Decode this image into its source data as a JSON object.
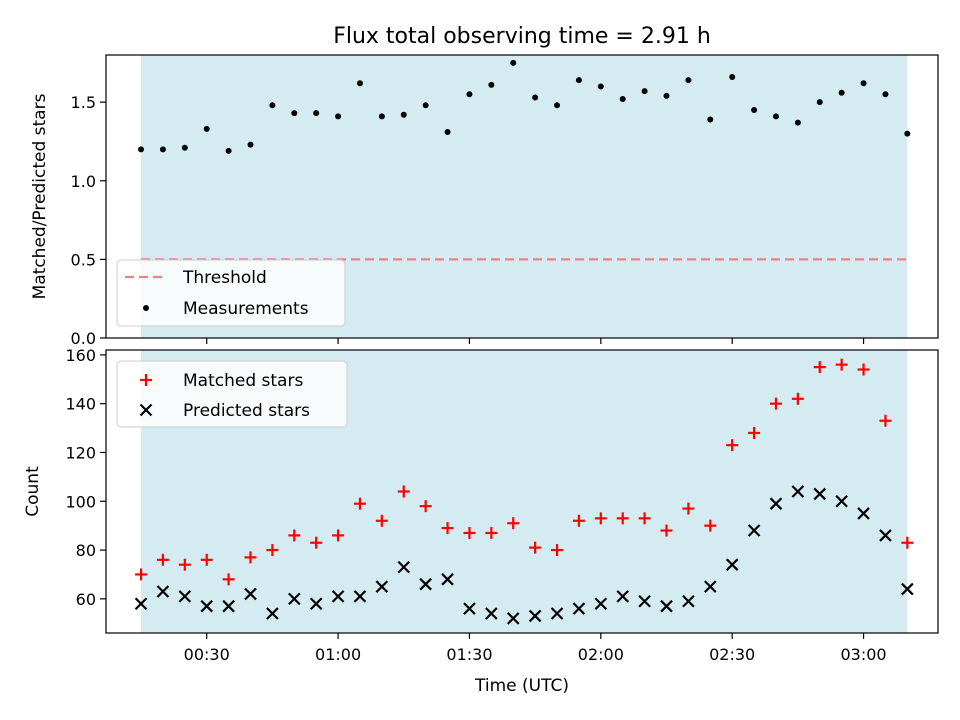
{
  "chart_data": [
    {
      "type": "scatter",
      "title": "Flux total observing time = 2.91 h",
      "ylabel": "Matched/Predicted stars",
      "xlabel": "",
      "ylim": [
        0,
        1.8
      ],
      "yticks": [
        0.0,
        0.5,
        1.0,
        1.5
      ],
      "ytick_labels": [
        "0.0",
        "0.5",
        "1.0",
        "1.5"
      ],
      "grid": false,
      "legend_position": "lower-left",
      "shaded_region": {
        "color": "#d4ebf1",
        "x_start": "00:15",
        "x_end": "03:10"
      },
      "threshold": {
        "name": "Threshold",
        "value": 0.5,
        "color": "#f08080",
        "style": "dashed"
      },
      "series": [
        {
          "name": "Measurements",
          "color": "#000000",
          "marker": "dot",
          "x": [
            "00:15",
            "00:20",
            "00:25",
            "00:30",
            "00:35",
            "00:40",
            "00:45",
            "00:50",
            "00:55",
            "01:00",
            "01:05",
            "01:10",
            "01:15",
            "01:20",
            "01:25",
            "01:30",
            "01:35",
            "01:40",
            "01:45",
            "01:50",
            "01:55",
            "02:00",
            "02:05",
            "02:10",
            "02:15",
            "02:20",
            "02:25",
            "02:30",
            "02:35",
            "02:40",
            "02:45",
            "02:50",
            "02:55",
            "03:00",
            "03:05",
            "03:10"
          ],
          "values": [
            1.2,
            1.2,
            1.21,
            1.33,
            1.19,
            1.23,
            1.48,
            1.43,
            1.43,
            1.41,
            1.62,
            1.41,
            1.42,
            1.48,
            1.31,
            1.55,
            1.61,
            1.75,
            1.53,
            1.48,
            1.64,
            1.6,
            1.52,
            1.57,
            1.54,
            1.64,
            1.39,
            1.66,
            1.45,
            1.41,
            1.37,
            1.5,
            1.56,
            1.62,
            1.55,
            1.3
          ]
        }
      ]
    },
    {
      "type": "scatter",
      "title": "",
      "xlabel": "Time (UTC)",
      "ylabel": "Count",
      "ylim": [
        46,
        162
      ],
      "yticks": [
        60,
        80,
        100,
        120,
        140,
        160
      ],
      "ytick_labels": [
        "60",
        "80",
        "100",
        "120",
        "140",
        "160"
      ],
      "xlim": [
        "00:07",
        "03:17"
      ],
      "xticks": [
        "00:30",
        "01:00",
        "01:30",
        "02:00",
        "02:30",
        "03:00"
      ],
      "grid": false,
      "legend_position": "top-left",
      "series": [
        {
          "name": "Matched stars",
          "color": "#ff0000",
          "marker": "plus",
          "x": [
            "00:15",
            "00:20",
            "00:25",
            "00:30",
            "00:35",
            "00:40",
            "00:45",
            "00:50",
            "00:55",
            "01:00",
            "01:05",
            "01:10",
            "01:15",
            "01:20",
            "01:25",
            "01:30",
            "01:35",
            "01:40",
            "01:45",
            "01:50",
            "01:55",
            "02:00",
            "02:05",
            "02:10",
            "02:15",
            "02:20",
            "02:25",
            "02:30",
            "02:35",
            "02:40",
            "02:45",
            "02:50",
            "02:55",
            "03:00",
            "03:05",
            "03:10"
          ],
          "values": [
            70,
            76,
            74,
            76,
            68,
            77,
            80,
            86,
            83,
            86,
            99,
            92,
            104,
            98,
            89,
            87,
            87,
            91,
            81,
            80,
            92,
            93,
            93,
            93,
            88,
            97,
            90,
            123,
            128,
            140,
            142,
            155,
            156,
            154,
            133,
            83
          ]
        },
        {
          "name": "Predicted stars",
          "color": "#000000",
          "marker": "x",
          "x": [
            "00:15",
            "00:20",
            "00:25",
            "00:30",
            "00:35",
            "00:40",
            "00:45",
            "00:50",
            "00:55",
            "01:00",
            "01:05",
            "01:10",
            "01:15",
            "01:20",
            "01:25",
            "01:30",
            "01:35",
            "01:40",
            "01:45",
            "01:50",
            "01:55",
            "02:00",
            "02:05",
            "02:10",
            "02:15",
            "02:20",
            "02:25",
            "02:30",
            "02:35",
            "02:40",
            "02:45",
            "02:50",
            "02:55",
            "03:00",
            "03:05",
            "03:10"
          ],
          "values": [
            58,
            63,
            61,
            57,
            57,
            62,
            54,
            60,
            58,
            61,
            61,
            65,
            73,
            66,
            68,
            56,
            54,
            52,
            53,
            54,
            56,
            58,
            61,
            59,
            57,
            59,
            65,
            74,
            88,
            99,
            104,
            103,
            100,
            95,
            86,
            64
          ]
        }
      ]
    }
  ]
}
